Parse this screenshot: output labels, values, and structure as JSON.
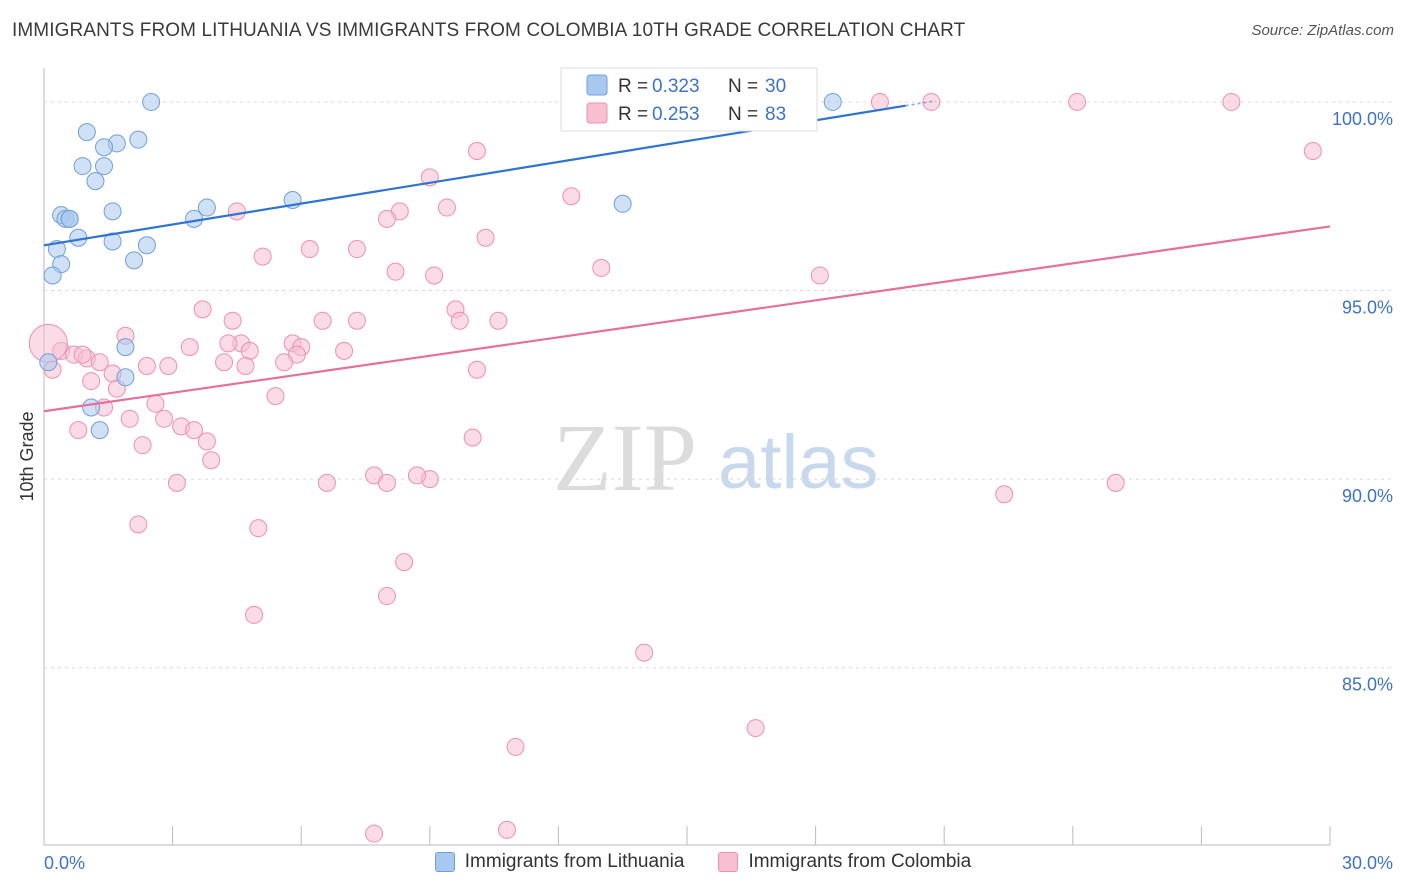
{
  "header": {
    "title": "IMMIGRANTS FROM LITHUANIA VS IMMIGRANTS FROM COLOMBIA 10TH GRADE CORRELATION CHART",
    "source": "Source: ZipAtlas.com"
  },
  "watermark": {
    "zip": "ZIP",
    "atlas": "atlas"
  },
  "legend": {
    "r_label": "R =",
    "n_label": "N =",
    "items": [
      {
        "r": "0.323",
        "n": "30"
      },
      {
        "r": "0.253",
        "n": "83"
      }
    ]
  },
  "colors": {
    "lithuania_fill": "#a9c8ef",
    "lithuania_stroke": "#6f9fdb",
    "lithuania_line": "#2f74d0",
    "colombia_fill": "#f8bfd1",
    "colombia_stroke": "#ee8fb0",
    "colombia_line": "#e76f9b",
    "axis_text": "#3d73c7",
    "grid": "#d8d8d8"
  },
  "chart_data": {
    "type": "scatter",
    "title": "IMMIGRANTS FROM LITHUANIA VS IMMIGRANTS FROM COLOMBIA 10TH GRADE CORRELATION CHART",
    "xlabel": "",
    "ylabel": "10th Grade",
    "xlim": [
      0,
      30
    ],
    "ylim": [
      80.3,
      100.9
    ],
    "x_tick_labels": [
      "0.0%",
      "30.0%"
    ],
    "y_ticks": [
      85,
      90,
      95,
      100
    ],
    "y_tick_labels": [
      "85.0%",
      "90.0%",
      "95.0%",
      "100.0%"
    ],
    "grid": true,
    "legend_position": "top-center",
    "series": [
      {
        "name": "Immigrants from Lithuania",
        "r": 0.323,
        "n": 30,
        "trend": {
          "x": [
            0.0,
            20.1
          ],
          "y": [
            96.2,
            99.9
          ]
        },
        "points": [
          {
            "x": 2.5,
            "y": 100.0
          },
          {
            "x": 18.4,
            "y": 100.0
          },
          {
            "x": 1.0,
            "y": 99.2
          },
          {
            "x": 2.2,
            "y": 99.0
          },
          {
            "x": 1.7,
            "y": 98.9
          },
          {
            "x": 1.4,
            "y": 98.8
          },
          {
            "x": 0.9,
            "y": 98.3
          },
          {
            "x": 1.4,
            "y": 98.3
          },
          {
            "x": 1.2,
            "y": 97.9
          },
          {
            "x": 5.8,
            "y": 97.4
          },
          {
            "x": 13.5,
            "y": 97.3
          },
          {
            "x": 3.8,
            "y": 97.2
          },
          {
            "x": 1.6,
            "y": 97.1
          },
          {
            "x": 0.4,
            "y": 97.0
          },
          {
            "x": 0.5,
            "y": 96.9
          },
          {
            "x": 0.6,
            "y": 96.9
          },
          {
            "x": 3.5,
            "y": 96.9
          },
          {
            "x": 0.8,
            "y": 96.4
          },
          {
            "x": 1.6,
            "y": 96.3
          },
          {
            "x": 2.4,
            "y": 96.2
          },
          {
            "x": 0.3,
            "y": 96.1
          },
          {
            "x": 0.4,
            "y": 95.7
          },
          {
            "x": 2.1,
            "y": 95.8
          },
          {
            "x": 0.2,
            "y": 95.4
          },
          {
            "x": 1.9,
            "y": 93.5
          },
          {
            "x": 0.1,
            "y": 93.1
          },
          {
            "x": 1.9,
            "y": 92.7
          },
          {
            "x": 1.1,
            "y": 91.9
          },
          {
            "x": 1.3,
            "y": 91.3
          },
          {
            "x": 0.6,
            "y": 96.9
          }
        ]
      },
      {
        "name": "Immigrants from Colombia",
        "r": 0.253,
        "n": 83,
        "trend": {
          "x": [
            0.0,
            30.0
          ],
          "y": [
            91.8,
            96.7
          ]
        },
        "points": [
          {
            "x": 14.4,
            "y": 100.0
          },
          {
            "x": 19.5,
            "y": 100.0
          },
          {
            "x": 20.7,
            "y": 100.0
          },
          {
            "x": 24.1,
            "y": 100.0
          },
          {
            "x": 27.7,
            "y": 100.0
          },
          {
            "x": 10.1,
            "y": 98.7
          },
          {
            "x": 29.6,
            "y": 98.7
          },
          {
            "x": 9.0,
            "y": 98.0
          },
          {
            "x": 12.3,
            "y": 97.5
          },
          {
            "x": 4.5,
            "y": 97.1
          },
          {
            "x": 8.3,
            "y": 97.1
          },
          {
            "x": 9.4,
            "y": 97.2
          },
          {
            "x": 8.0,
            "y": 96.9
          },
          {
            "x": 10.3,
            "y": 96.4
          },
          {
            "x": 7.3,
            "y": 96.1
          },
          {
            "x": 6.2,
            "y": 96.1
          },
          {
            "x": 5.1,
            "y": 95.9
          },
          {
            "x": 13.0,
            "y": 95.6
          },
          {
            "x": 8.2,
            "y": 95.5
          },
          {
            "x": 9.1,
            "y": 95.4
          },
          {
            "x": 18.1,
            "y": 95.4
          },
          {
            "x": 3.7,
            "y": 94.5
          },
          {
            "x": 9.6,
            "y": 94.5
          },
          {
            "x": 4.4,
            "y": 94.2
          },
          {
            "x": 6.5,
            "y": 94.2
          },
          {
            "x": 7.3,
            "y": 94.2
          },
          {
            "x": 9.7,
            "y": 94.2
          },
          {
            "x": 10.6,
            "y": 94.2
          },
          {
            "x": 1.9,
            "y": 93.8
          },
          {
            "x": 4.6,
            "y": 93.6
          },
          {
            "x": 5.8,
            "y": 93.6
          },
          {
            "x": 3.4,
            "y": 93.5
          },
          {
            "x": 6.0,
            "y": 93.5
          },
          {
            "x": 0.4,
            "y": 93.4
          },
          {
            "x": 4.8,
            "y": 93.4
          },
          {
            "x": 7.0,
            "y": 93.4
          },
          {
            "x": 0.7,
            "y": 93.3
          },
          {
            "x": 5.9,
            "y": 93.3
          },
          {
            "x": 1.0,
            "y": 93.2
          },
          {
            "x": 1.3,
            "y": 93.1
          },
          {
            "x": 2.9,
            "y": 93.0
          },
          {
            "x": 4.2,
            "y": 93.1
          },
          {
            "x": 5.6,
            "y": 93.1
          },
          {
            "x": 2.4,
            "y": 93.0
          },
          {
            "x": 4.7,
            "y": 93.0
          },
          {
            "x": 10.1,
            "y": 92.9
          },
          {
            "x": 1.6,
            "y": 92.8
          },
          {
            "x": 1.1,
            "y": 92.6
          },
          {
            "x": 1.7,
            "y": 92.4
          },
          {
            "x": 5.4,
            "y": 92.2
          },
          {
            "x": 2.6,
            "y": 92.0
          },
          {
            "x": 1.4,
            "y": 91.9
          },
          {
            "x": 2.0,
            "y": 91.6
          },
          {
            "x": 2.8,
            "y": 91.6
          },
          {
            "x": 3.2,
            "y": 91.4
          },
          {
            "x": 3.5,
            "y": 91.3
          },
          {
            "x": 0.8,
            "y": 91.3
          },
          {
            "x": 10.0,
            "y": 91.1
          },
          {
            "x": 3.8,
            "y": 91.0
          },
          {
            "x": 2.3,
            "y": 90.9
          },
          {
            "x": 3.9,
            "y": 90.5
          },
          {
            "x": 7.7,
            "y": 90.1
          },
          {
            "x": 9.0,
            "y": 90.0
          },
          {
            "x": 6.6,
            "y": 89.9
          },
          {
            "x": 8.0,
            "y": 89.9
          },
          {
            "x": 3.1,
            "y": 89.9
          },
          {
            "x": 25.0,
            "y": 89.9
          },
          {
            "x": 22.4,
            "y": 89.6
          },
          {
            "x": 2.2,
            "y": 88.8
          },
          {
            "x": 5.0,
            "y": 88.7
          },
          {
            "x": 8.4,
            "y": 87.8
          },
          {
            "x": 8.0,
            "y": 86.9
          },
          {
            "x": 4.9,
            "y": 86.4
          },
          {
            "x": 14.0,
            "y": 85.4
          },
          {
            "x": 16.6,
            "y": 83.4
          },
          {
            "x": 11.0,
            "y": 82.9
          },
          {
            "x": 7.7,
            "y": 80.6
          },
          {
            "x": 10.8,
            "y": 80.7
          },
          {
            "x": 0.1,
            "y": 93.6
          },
          {
            "x": 0.2,
            "y": 92.9
          },
          {
            "x": 0.9,
            "y": 93.3
          },
          {
            "x": 8.7,
            "y": 90.1
          },
          {
            "x": 4.3,
            "y": 93.6
          }
        ]
      }
    ]
  }
}
